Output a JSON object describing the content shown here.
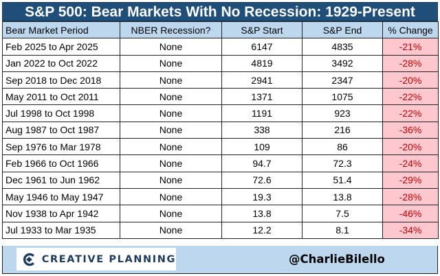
{
  "title": "S&P 500: Bear Markets With No Recession: 1929-Present",
  "table": {
    "headers": [
      "Bear Market Period",
      "NBER Recession?",
      "S&P Start",
      "S&P End",
      "% Change"
    ],
    "rows": [
      [
        "Feb 2025 to Apr 2025",
        "None",
        "6147",
        "4835",
        "-21%"
      ],
      [
        "Jan 2022 to Oct 2022",
        "None",
        "4819",
        "3492",
        "-28%"
      ],
      [
        "Sep 2018 to Dec 2018",
        "None",
        "2941",
        "2347",
        "-20%"
      ],
      [
        "May 2011 to Oct 2011",
        "None",
        "1371",
        "1075",
        "-22%"
      ],
      [
        "Jul 1998 to Oct 1998",
        "None",
        "1191",
        "923",
        "-22%"
      ],
      [
        "Aug 1987 to Oct 1987",
        "None",
        "338",
        "216",
        "-36%"
      ],
      [
        "Sep 1976 to Mar 1978",
        "None",
        "109",
        "86",
        "-20%"
      ],
      [
        "Feb 1966 to Oct 1966",
        "None",
        "94.7",
        "72.3",
        "-24%"
      ],
      [
        "Dec 1961 to Jun 1962",
        "None",
        "72.6",
        "51.4",
        "-29%"
      ],
      [
        "May 1946 to May 1947",
        "None",
        "19.3",
        "13.8",
        "-28%"
      ],
      [
        "Nov 1938 to Apr 1942",
        "None",
        "13.8",
        "7.5",
        "-46%"
      ],
      [
        "Jul 1933 to Mar 1935",
        "None",
        "12.2",
        "8.1",
        "-34%"
      ]
    ]
  },
  "footer": {
    "logo_text": "CREATIVE PLANNING",
    "logo_icon": "creative-planning-logo-icon",
    "handle": "@CharlieBilello"
  },
  "colors": {
    "title_bg": "#1f4e79",
    "header_bg": "#bdd7ee",
    "negative_bg": "#ffc7ce",
    "negative_text": "#c00000",
    "logo_text": "#1d3a5c"
  }
}
